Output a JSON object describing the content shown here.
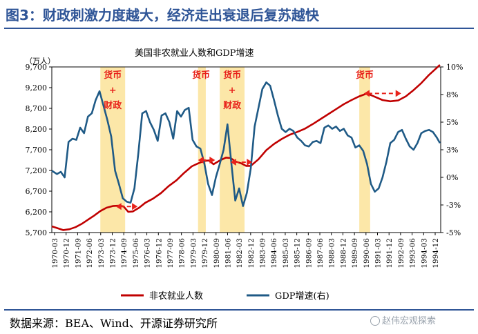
{
  "figure_title": "图3：财政刺激力度越大，经济走出衰退后复苏越快",
  "source": "数据来源：BEA、Wind、开源证券研究所",
  "watermark": "赵伟宏观探索",
  "colors": {
    "title": "#2f5597",
    "payroll": "#c00000",
    "gdp": "#1f5a86",
    "shade": "#fce7a8",
    "annotation": "#e8221b"
  },
  "chart_data": {
    "type": "line",
    "title": "美国非农就业人数和GDP增速",
    "left_axis_unit": "（万人）",
    "ylim_left": [
      5700,
      9700
    ],
    "yticks_left": [
      "9,700",
      "9,200",
      "8,700",
      "8,200",
      "7,700",
      "7,200",
      "6,700",
      "6,200",
      "5,700"
    ],
    "ylim_right": [
      -5,
      10
    ],
    "yticks_right": [
      "10%",
      "8%",
      "5%",
      "3%",
      "0%",
      "-3%",
      "-5%"
    ],
    "x_tick_labels": [
      "1970-03",
      "1970-12",
      "1971-09",
      "1972-06",
      "1973-03",
      "1973-12",
      "1974-09",
      "1975-06",
      "1976-03",
      "1976-12",
      "1977-09",
      "1978-06",
      "1979-03",
      "1979-12",
      "1980-09",
      "1981-06",
      "1982-03",
      "1982-12",
      "1983-09",
      "1984-06",
      "1985-03",
      "1985-12",
      "1986-09",
      "1987-06",
      "1988-03",
      "1988-12",
      "1989-09",
      "1990-06",
      "1991-03",
      "1991-12",
      "1992-09",
      "1993-06",
      "1994-03",
      "1994-12"
    ],
    "x_range": [
      1970.17,
      1995.25
    ],
    "grid": false,
    "legend_position": "bottom",
    "series": [
      {
        "name": "非农就业人数",
        "axis": "left",
        "points": [
          [
            1970.17,
            5850
          ],
          [
            1970.5,
            5810
          ],
          [
            1970.9,
            5760
          ],
          [
            1971.3,
            5780
          ],
          [
            1971.7,
            5830
          ],
          [
            1972.1,
            5910
          ],
          [
            1972.5,
            6010
          ],
          [
            1972.9,
            6110
          ],
          [
            1973.3,
            6220
          ],
          [
            1973.7,
            6300
          ],
          [
            1974.1,
            6340
          ],
          [
            1974.5,
            6350
          ],
          [
            1974.8,
            6330
          ],
          [
            1975.1,
            6200
          ],
          [
            1975.4,
            6210
          ],
          [
            1975.8,
            6300
          ],
          [
            1976.2,
            6420
          ],
          [
            1976.7,
            6520
          ],
          [
            1977.2,
            6650
          ],
          [
            1977.7,
            6820
          ],
          [
            1978.2,
            6960
          ],
          [
            1978.7,
            7140
          ],
          [
            1979.2,
            7300
          ],
          [
            1979.6,
            7370
          ],
          [
            1980.0,
            7430
          ],
          [
            1980.3,
            7440
          ],
          [
            1980.6,
            7350
          ],
          [
            1981.0,
            7440
          ],
          [
            1981.4,
            7510
          ],
          [
            1981.7,
            7500
          ],
          [
            1982.0,
            7420
          ],
          [
            1982.4,
            7370
          ],
          [
            1982.7,
            7310
          ],
          [
            1983.0,
            7310
          ],
          [
            1983.5,
            7470
          ],
          [
            1984.0,
            7690
          ],
          [
            1984.5,
            7840
          ],
          [
            1985.0,
            7960
          ],
          [
            1985.5,
            8060
          ],
          [
            1986.0,
            8130
          ],
          [
            1986.5,
            8210
          ],
          [
            1987.0,
            8320
          ],
          [
            1987.5,
            8440
          ],
          [
            1988.0,
            8560
          ],
          [
            1988.5,
            8680
          ],
          [
            1989.0,
            8800
          ],
          [
            1989.5,
            8900
          ],
          [
            1990.0,
            8990
          ],
          [
            1990.5,
            9060
          ],
          [
            1991.0,
            8980
          ],
          [
            1991.5,
            8900
          ],
          [
            1992.0,
            8870
          ],
          [
            1992.5,
            8890
          ],
          [
            1993.0,
            8990
          ],
          [
            1993.5,
            9140
          ],
          [
            1994.0,
            9310
          ],
          [
            1994.5,
            9510
          ],
          [
            1995.0,
            9680
          ],
          [
            1995.2,
            9750
          ]
        ]
      },
      {
        "name": "GDP增速(右)",
        "axis": "right",
        "points": [
          [
            1970.17,
            0.6
          ],
          [
            1970.5,
            0.3
          ],
          [
            1970.75,
            0.5
          ],
          [
            1971.0,
            0.0
          ],
          [
            1971.25,
            3.2
          ],
          [
            1971.5,
            3.5
          ],
          [
            1971.75,
            3.4
          ],
          [
            1972.0,
            4.5
          ],
          [
            1972.25,
            4.0
          ],
          [
            1972.5,
            5.5
          ],
          [
            1972.75,
            5.8
          ],
          [
            1973.0,
            7.0
          ],
          [
            1973.25,
            7.8
          ],
          [
            1973.5,
            6.5
          ],
          [
            1973.75,
            5.2
          ],
          [
            1974.0,
            3.7
          ],
          [
            1974.25,
            0.6
          ],
          [
            1974.5,
            -0.6
          ],
          [
            1974.75,
            -1.9
          ],
          [
            1975.0,
            -2.2
          ],
          [
            1975.25,
            -2.3
          ],
          [
            1975.5,
            -1.0
          ],
          [
            1975.75,
            2.2
          ],
          [
            1976.0,
            5.8
          ],
          [
            1976.25,
            6.0
          ],
          [
            1976.5,
            5.0
          ],
          [
            1976.75,
            4.3
          ],
          [
            1977.0,
            3.3
          ],
          [
            1977.25,
            5.6
          ],
          [
            1977.5,
            5.8
          ],
          [
            1977.75,
            5.0
          ],
          [
            1978.0,
            3.5
          ],
          [
            1978.25,
            6.0
          ],
          [
            1978.5,
            5.5
          ],
          [
            1978.75,
            6.1
          ],
          [
            1979.0,
            6.3
          ],
          [
            1979.25,
            3.4
          ],
          [
            1979.5,
            2.8
          ],
          [
            1979.75,
            2.6
          ],
          [
            1980.0,
            1.3
          ],
          [
            1980.25,
            -0.6
          ],
          [
            1980.5,
            -1.6
          ],
          [
            1980.75,
            0.0
          ],
          [
            1981.0,
            1.2
          ],
          [
            1981.25,
            2.5
          ],
          [
            1981.5,
            4.8
          ],
          [
            1981.75,
            1.3
          ],
          [
            1982.0,
            -2.1
          ],
          [
            1982.25,
            -1.0
          ],
          [
            1982.5,
            -2.6
          ],
          [
            1982.75,
            -1.4
          ],
          [
            1983.0,
            0.8
          ],
          [
            1983.25,
            4.6
          ],
          [
            1983.5,
            6.3
          ],
          [
            1983.75,
            8.0
          ],
          [
            1984.0,
            8.6
          ],
          [
            1984.25,
            8.3
          ],
          [
            1984.5,
            7.0
          ],
          [
            1984.75,
            5.6
          ],
          [
            1985.0,
            4.4
          ],
          [
            1985.25,
            4.1
          ],
          [
            1985.5,
            4.4
          ],
          [
            1985.75,
            4.2
          ],
          [
            1986.0,
            3.6
          ],
          [
            1986.25,
            3.3
          ],
          [
            1986.5,
            2.9
          ],
          [
            1986.75,
            2.8
          ],
          [
            1987.0,
            3.2
          ],
          [
            1987.25,
            3.3
          ],
          [
            1987.5,
            3.1
          ],
          [
            1987.75,
            4.5
          ],
          [
            1988.0,
            4.7
          ],
          [
            1988.25,
            4.4
          ],
          [
            1988.5,
            4.6
          ],
          [
            1988.75,
            4.2
          ],
          [
            1989.0,
            4.4
          ],
          [
            1989.25,
            3.8
          ],
          [
            1989.5,
            3.6
          ],
          [
            1989.75,
            2.7
          ],
          [
            1990.0,
            2.9
          ],
          [
            1990.25,
            2.4
          ],
          [
            1990.5,
            1.2
          ],
          [
            1990.75,
            -0.6
          ],
          [
            1991.0,
            -1.3
          ],
          [
            1991.25,
            -1.0
          ],
          [
            1991.5,
            0.0
          ],
          [
            1991.75,
            1.4
          ],
          [
            1992.0,
            3.1
          ],
          [
            1992.25,
            3.4
          ],
          [
            1992.5,
            4.1
          ],
          [
            1992.75,
            4.3
          ],
          [
            1993.0,
            3.5
          ],
          [
            1993.25,
            2.8
          ],
          [
            1993.5,
            2.5
          ],
          [
            1993.75,
            3.1
          ],
          [
            1994.0,
            4.0
          ],
          [
            1994.25,
            4.2
          ],
          [
            1994.5,
            4.3
          ],
          [
            1994.75,
            4.1
          ],
          [
            1995.0,
            3.6
          ],
          [
            1995.2,
            3.1
          ]
        ]
      }
    ],
    "shaded_periods": [
      [
        1973.3,
        1974.9
      ],
      [
        1979.6,
        1980.1
      ],
      [
        1981.0,
        1982.6
      ],
      [
        1990.0,
        1990.7
      ]
    ],
    "annotations": [
      {
        "lines": [
          "货币",
          "+",
          "财政"
        ],
        "x": 1974.1
      },
      {
        "lines": [
          "货币"
        ],
        "x": 1979.8
      },
      {
        "lines": [
          "货币",
          "+",
          "财政"
        ],
        "x": 1981.8
      },
      {
        "lines": [
          "货币"
        ],
        "x": 1990.35
      }
    ],
    "arrows": [
      {
        "from": [
          1974.3,
          6330
        ],
        "to": [
          1975.7,
          6330
        ]
      },
      {
        "from": [
          1979.6,
          7450
        ],
        "to": [
          1980.7,
          7450
        ]
      },
      {
        "from": [
          1981.7,
          7400
        ],
        "to": [
          1983.1,
          7400
        ]
      },
      {
        "from": [
          1990.3,
          9060
        ],
        "to": [
          1992.7,
          9060
        ]
      }
    ]
  }
}
